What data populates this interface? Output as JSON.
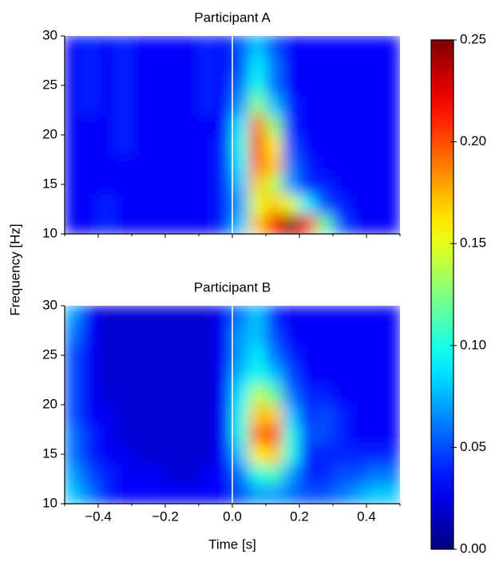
{
  "chart_data": {
    "type": "heatmap",
    "xlabel": "Time [s]",
    "ylabel": "Frequency [Hz]",
    "xlim": [
      -0.5,
      0.5
    ],
    "xticks": [
      {
        "value": -0.4,
        "label": "−0.4"
      },
      {
        "value": -0.2,
        "label": "−0.2"
      },
      {
        "value": 0,
        "label": "0.0"
      },
      0.2,
      0.4
    ],
    "ylim": [
      10,
      30
    ],
    "yticks": [
      10,
      15,
      20,
      25,
      30
    ],
    "vline": 0,
    "x": [
      -0.475,
      -0.425,
      -0.375,
      -0.325,
      -0.275,
      -0.225,
      -0.175,
      -0.125,
      -0.075,
      -0.025,
      0.025,
      0.075,
      0.125,
      0.175,
      0.225,
      0.275,
      0.325,
      0.375,
      0.425,
      0.475
    ],
    "y": [
      11,
      13,
      15,
      17,
      19,
      21,
      23,
      25,
      27,
      29
    ],
    "colorbar": {
      "colormap": "jet",
      "clim": [
        0,
        0.25
      ],
      "ticks": [
        {
          "value": 0,
          "label": "0.00"
        },
        0.05,
        {
          "value": 0.1,
          "label": "0.10"
        },
        0.15,
        {
          "value": 0.2,
          "label": "0.20"
        },
        0.25
      ]
    },
    "panels": [
      {
        "title": "Participant A",
        "z": [
          [
            0.03,
            0.03,
            0.04,
            0.03,
            0.03,
            0.03,
            0.03,
            0.03,
            0.03,
            0.04,
            0.08,
            0.17,
            0.22,
            0.25,
            0.22,
            0.12,
            0.05,
            0.03,
            0.03,
            0.03
          ],
          [
            0.03,
            0.03,
            0.04,
            0.03,
            0.03,
            0.03,
            0.03,
            0.03,
            0.03,
            0.04,
            0.07,
            0.15,
            0.17,
            0.15,
            0.09,
            0.05,
            0.04,
            0.03,
            0.03,
            0.03
          ],
          [
            0.03,
            0.03,
            0.03,
            0.03,
            0.03,
            0.03,
            0.03,
            0.03,
            0.03,
            0.04,
            0.08,
            0.17,
            0.14,
            0.07,
            0.04,
            0.04,
            0.03,
            0.03,
            0.03,
            0.03
          ],
          [
            0.03,
            0.03,
            0.03,
            0.03,
            0.03,
            0.03,
            0.03,
            0.03,
            0.03,
            0.04,
            0.09,
            0.19,
            0.17,
            0.06,
            0.04,
            0.03,
            0.03,
            0.03,
            0.03,
            0.03
          ],
          [
            0.03,
            0.03,
            0.03,
            0.04,
            0.03,
            0.03,
            0.03,
            0.03,
            0.03,
            0.04,
            0.1,
            0.2,
            0.16,
            0.05,
            0.03,
            0.03,
            0.03,
            0.03,
            0.03,
            0.03
          ],
          [
            0.03,
            0.03,
            0.03,
            0.04,
            0.03,
            0.03,
            0.03,
            0.03,
            0.03,
            0.03,
            0.09,
            0.19,
            0.13,
            0.04,
            0.03,
            0.03,
            0.03,
            0.03,
            0.03,
            0.03
          ],
          [
            0.03,
            0.04,
            0.03,
            0.04,
            0.03,
            0.03,
            0.03,
            0.03,
            0.04,
            0.03,
            0.07,
            0.13,
            0.08,
            0.04,
            0.03,
            0.03,
            0.03,
            0.03,
            0.03,
            0.03
          ],
          [
            0.03,
            0.04,
            0.03,
            0.04,
            0.03,
            0.03,
            0.03,
            0.03,
            0.04,
            0.03,
            0.06,
            0.1,
            0.06,
            0.03,
            0.03,
            0.03,
            0.03,
            0.03,
            0.03,
            0.03
          ],
          [
            0.03,
            0.04,
            0.03,
            0.04,
            0.03,
            0.03,
            0.03,
            0.03,
            0.04,
            0.03,
            0.05,
            0.09,
            0.06,
            0.03,
            0.03,
            0.03,
            0.03,
            0.03,
            0.03,
            0.03
          ],
          [
            0.03,
            0.04,
            0.03,
            0.04,
            0.03,
            0.03,
            0.03,
            0.03,
            0.04,
            0.03,
            0.05,
            0.08,
            0.05,
            0.03,
            0.03,
            0.03,
            0.03,
            0.03,
            0.03,
            0.03
          ]
        ]
      },
      {
        "title": "Participant B",
        "z": [
          [
            0.08,
            0.06,
            0.04,
            0.03,
            0.03,
            0.03,
            0.03,
            0.03,
            0.03,
            0.03,
            0.05,
            0.07,
            0.07,
            0.06,
            0.05,
            0.05,
            0.06,
            0.07,
            0.08,
            0.08
          ],
          [
            0.07,
            0.05,
            0.04,
            0.03,
            0.03,
            0.03,
            0.02,
            0.02,
            0.03,
            0.03,
            0.06,
            0.1,
            0.11,
            0.07,
            0.04,
            0.04,
            0.05,
            0.05,
            0.06,
            0.06
          ],
          [
            0.06,
            0.04,
            0.03,
            0.03,
            0.02,
            0.02,
            0.02,
            0.02,
            0.02,
            0.03,
            0.08,
            0.16,
            0.17,
            0.1,
            0.04,
            0.04,
            0.04,
            0.04,
            0.04,
            0.04
          ],
          [
            0.06,
            0.04,
            0.03,
            0.02,
            0.02,
            0.02,
            0.02,
            0.02,
            0.02,
            0.03,
            0.1,
            0.19,
            0.2,
            0.1,
            0.05,
            0.05,
            0.04,
            0.03,
            0.03,
            0.03
          ],
          [
            0.05,
            0.03,
            0.03,
            0.02,
            0.02,
            0.02,
            0.02,
            0.02,
            0.02,
            0.03,
            0.1,
            0.17,
            0.17,
            0.08,
            0.04,
            0.05,
            0.04,
            0.03,
            0.03,
            0.03
          ],
          [
            0.05,
            0.03,
            0.02,
            0.02,
            0.02,
            0.02,
            0.02,
            0.02,
            0.02,
            0.03,
            0.09,
            0.14,
            0.12,
            0.06,
            0.04,
            0.04,
            0.03,
            0.03,
            0.03,
            0.03
          ],
          [
            0.05,
            0.03,
            0.02,
            0.02,
            0.02,
            0.02,
            0.02,
            0.02,
            0.02,
            0.03,
            0.08,
            0.1,
            0.08,
            0.05,
            0.03,
            0.03,
            0.03,
            0.03,
            0.03,
            0.03
          ],
          [
            0.05,
            0.03,
            0.02,
            0.02,
            0.02,
            0.02,
            0.02,
            0.02,
            0.02,
            0.03,
            0.07,
            0.09,
            0.06,
            0.04,
            0.03,
            0.03,
            0.03,
            0.03,
            0.03,
            0.03
          ],
          [
            0.06,
            0.03,
            0.02,
            0.02,
            0.02,
            0.02,
            0.02,
            0.02,
            0.02,
            0.03,
            0.07,
            0.08,
            0.05,
            0.03,
            0.03,
            0.03,
            0.03,
            0.03,
            0.03,
            0.03
          ],
          [
            0.07,
            0.03,
            0.02,
            0.02,
            0.02,
            0.02,
            0.02,
            0.02,
            0.02,
            0.03,
            0.06,
            0.08,
            0.04,
            0.03,
            0.03,
            0.03,
            0.03,
            0.03,
            0.03,
            0.03
          ]
        ]
      }
    ]
  }
}
